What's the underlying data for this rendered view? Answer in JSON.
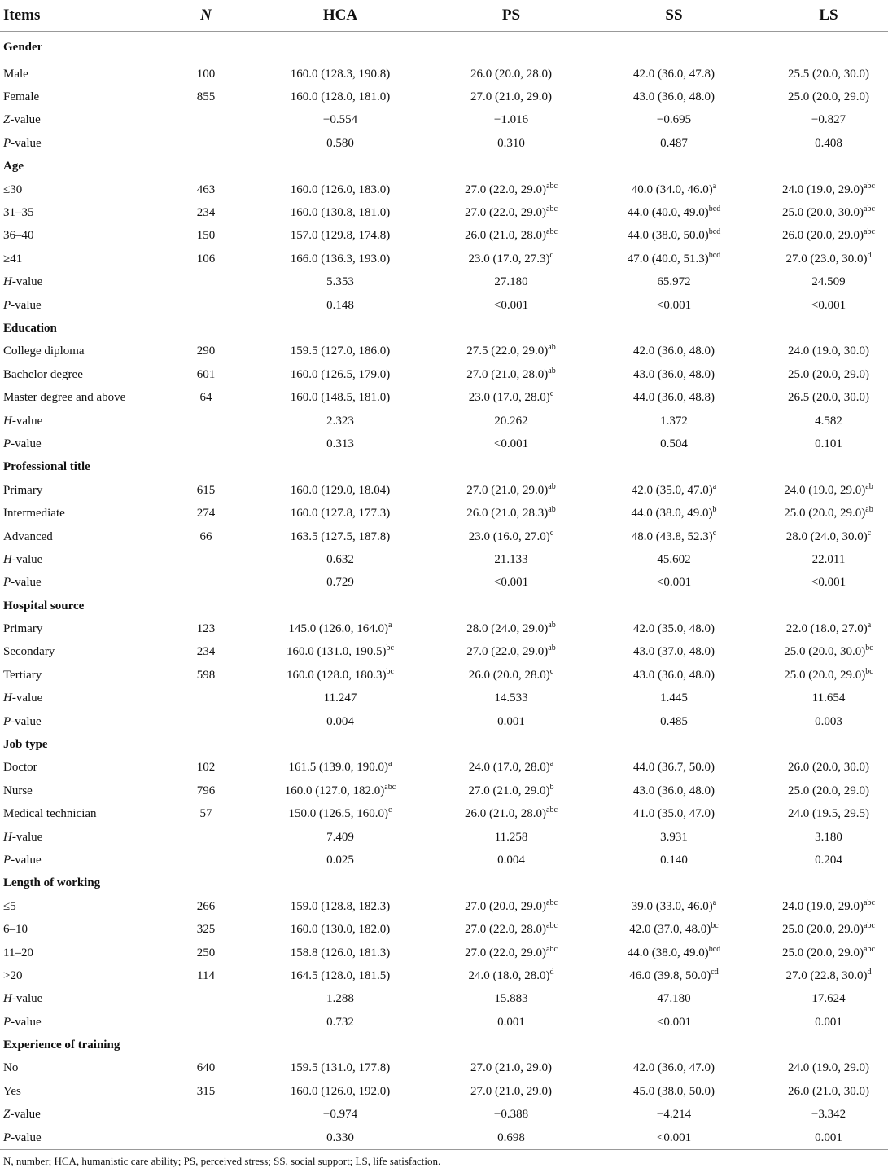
{
  "table": {
    "header": [
      "Items",
      "N",
      "HCA",
      "PS",
      "SS",
      "LS"
    ],
    "rows": [
      [
        "Gender"
      ],
      [
        "Male",
        "100",
        "160.0 (128.3, 190.8)",
        "26.0 (20.0, 28.0)",
        "42.0 (36.0, 47.8)",
        "25.5 (20.0, 30.0)"
      ],
      [
        "Female",
        "855",
        "160.0 (128.0, 181.0)",
        "27.0 (21.0, 29.0)",
        "43.0 (36.0, 48.0)",
        "25.0 (20.0, 29.0)"
      ],
      [
        "Z-value",
        null,
        "−0.554",
        "−1.016",
        "−0.695",
        "−0.827"
      ],
      [
        "P-value",
        null,
        "0.580",
        "0.310",
        "0.487",
        "0.408"
      ],
      [
        "Age"
      ],
      [
        "≤30",
        "463",
        "160.0 (126.0, 183.0)",
        {
          "text": "27.0 (22.0, 29.0)",
          "sup": "abc"
        },
        {
          "text": "40.0 (34.0, 46.0)",
          "sup": "a"
        },
        {
          "text": "24.0 (19.0, 29.0)",
          "sup": "abc"
        }
      ],
      [
        "31–35",
        "234",
        "160.0 (130.8, 181.0)",
        {
          "text": "27.0 (22.0, 29.0)",
          "sup": "abc"
        },
        {
          "text": "44.0 (40.0, 49.0)",
          "sup": "bcd"
        },
        {
          "text": "25.0 (20.0, 30.0)",
          "sup": "abc"
        }
      ],
      [
        "36–40",
        "150",
        "157.0 (129.8, 174.8)",
        {
          "text": "26.0 (21.0, 28.0)",
          "sup": "abc"
        },
        {
          "text": "44.0 (38.0, 50.0)",
          "sup": "bcd"
        },
        {
          "text": "26.0 (20.0, 29.0)",
          "sup": "abc"
        }
      ],
      [
        "≥41",
        "106",
        "166.0 (136.3, 193.0)",
        {
          "text": "23.0 (17.0, 27.3)",
          "sup": "d"
        },
        {
          "text": "47.0 (40.0, 51.3)",
          "sup": "bcd"
        },
        {
          "text": "27.0 (23.0, 30.0)",
          "sup": "d"
        }
      ],
      [
        "H-value",
        null,
        "5.353",
        "27.180",
        "65.972",
        "24.509"
      ],
      [
        "P-value",
        null,
        "0.148",
        "<0.001",
        "<0.001",
        "<0.001"
      ],
      [
        "Education"
      ],
      [
        "College diploma",
        "290",
        "159.5 (127.0, 186.0)",
        {
          "text": "27.5 (22.0, 29.0)",
          "sup": "ab"
        },
        "42.0 (36.0, 48.0)",
        "24.0 (19.0, 30.0)"
      ],
      [
        "Bachelor degree",
        "601",
        "160.0 (126.5, 179.0)",
        {
          "text": "27.0 (21.0, 28.0)",
          "sup": "ab"
        },
        "43.0 (36.0, 48.0)",
        "25.0 (20.0, 29.0)"
      ],
      [
        "Master degree and above",
        "64",
        "160.0 (148.5, 181.0)",
        {
          "text": "23.0 (17.0, 28.0)",
          "sup": "c"
        },
        "44.0 (36.0, 48.8)",
        "26.5 (20.0, 30.0)"
      ],
      [
        "H-value",
        null,
        "2.323",
        "20.262",
        "1.372",
        "4.582"
      ],
      [
        "P-value",
        null,
        "0.313",
        "<0.001",
        "0.504",
        "0.101"
      ],
      [
        "Professional title"
      ],
      [
        "Primary",
        "615",
        "160.0 (129.0, 18.04)",
        {
          "text": "27.0 (21.0, 29.0)",
          "sup": "ab"
        },
        {
          "text": "42.0 (35.0, 47.0)",
          "sup": "a"
        },
        {
          "text": "24.0 (19.0, 29.0)",
          "sup": "ab"
        }
      ],
      [
        "Intermediate",
        "274",
        "160.0 (127.8, 177.3)",
        {
          "text": "26.0 (21.0, 28.3)",
          "sup": "ab"
        },
        {
          "text": "44.0 (38.0, 49.0)",
          "sup": "b"
        },
        {
          "text": "25.0 (20.0, 29.0)",
          "sup": "ab"
        }
      ],
      [
        "Advanced",
        "66",
        "163.5 (127.5, 187.8)",
        {
          "text": "23.0 (16.0, 27.0)",
          "sup": "c"
        },
        {
          "text": "48.0 (43.8, 52.3)",
          "sup": "c"
        },
        {
          "text": "28.0 (24.0, 30.0)",
          "sup": "c"
        }
      ],
      [
        "H-value",
        null,
        "0.632",
        "21.133",
        "45.602",
        "22.011"
      ],
      [
        "P-value",
        null,
        "0.729",
        "<0.001",
        "<0.001",
        "<0.001"
      ],
      [
        "Hospital source"
      ],
      [
        "Primary",
        "123",
        {
          "text": "145.0 (126.0, 164.0)",
          "sup": "a"
        },
        {
          "text": "28.0 (24.0, 29.0)",
          "sup": "ab"
        },
        "42.0 (35.0, 48.0)",
        {
          "text": "22.0 (18.0, 27.0)",
          "sup": "a"
        }
      ],
      [
        "Secondary",
        "234",
        {
          "text": "160.0 (131.0, 190.5)",
          "sup": "bc"
        },
        {
          "text": "27.0 (22.0, 29.0)",
          "sup": "ab"
        },
        "43.0 (37.0, 48.0)",
        {
          "text": "25.0 (20.0, 30.0)",
          "sup": "bc"
        }
      ],
      [
        "Tertiary",
        "598",
        {
          "text": "160.0 (128.0, 180.3)",
          "sup": "bc"
        },
        {
          "text": "26.0 (20.0, 28.0)",
          "sup": "c"
        },
        "43.0 (36.0, 48.0)",
        {
          "text": "25.0 (20.0, 29.0)",
          "sup": "bc"
        }
      ],
      [
        "H-value",
        null,
        "11.247",
        "14.533",
        "1.445",
        "11.654"
      ],
      [
        "P-value",
        null,
        "0.004",
        "0.001",
        "0.485",
        "0.003"
      ],
      [
        "Job type"
      ],
      [
        "Doctor",
        "102",
        {
          "text": "161.5 (139.0, 190.0)",
          "sup": "a"
        },
        {
          "text": "24.0 (17.0, 28.0)",
          "sup": "a"
        },
        "44.0 (36.7, 50.0)",
        "26.0 (20.0, 30.0)"
      ],
      [
        "Nurse",
        "796",
        {
          "text": "160.0 (127.0, 182.0)",
          "sup": "abc"
        },
        {
          "text": "27.0 (21.0, 29.0)",
          "sup": "b"
        },
        "43.0 (36.0, 48.0)",
        "25.0 (20.0, 29.0)"
      ],
      [
        "Medical technician",
        "57",
        {
          "text": "150.0 (126.5, 160.0)",
          "sup": "c"
        },
        {
          "text": "26.0 (21.0, 28.0)",
          "sup": "abc"
        },
        "41.0 (35.0, 47.0)",
        "24.0 (19.5, 29.5)"
      ],
      [
        "H-value",
        null,
        "7.409",
        "11.258",
        "3.931",
        "3.180"
      ],
      [
        "P-value",
        null,
        "0.025",
        "0.004",
        "0.140",
        "0.204"
      ],
      [
        "Length of working"
      ],
      [
        "≤5",
        "266",
        "159.0 (128.8, 182.3)",
        {
          "text": "27.0 (20.0, 29.0)",
          "sup": "abc"
        },
        {
          "text": "39.0 (33.0, 46.0)",
          "sup": "a"
        },
        {
          "text": "24.0 (19.0, 29.0)",
          "sup": "abc"
        }
      ],
      [
        "6–10",
        "325",
        "160.0 (130.0, 182.0)",
        {
          "text": "27.0 (22.0, 28.0)",
          "sup": "abc"
        },
        {
          "text": "42.0 (37.0, 48.0)",
          "sup": "bc"
        },
        {
          "text": "25.0 (20.0, 29.0)",
          "sup": "abc"
        }
      ],
      [
        "11–20",
        "250",
        "158.8 (126.0, 181.3)",
        {
          "text": "27.0 (22.0, 29.0)",
          "sup": "abc"
        },
        {
          "text": "44.0 (38.0, 49.0)",
          "sup": "bcd"
        },
        {
          "text": "25.0 (20.0, 29.0)",
          "sup": "abc"
        }
      ],
      [
        ">20",
        "114",
        "164.5 (128.0, 181.5)",
        {
          "text": "24.0 (18.0, 28.0)",
          "sup": "d"
        },
        {
          "text": "46.0 (39.8, 50.0)",
          "sup": "cd"
        },
        {
          "text": "27.0 (22.8, 30.0)",
          "sup": "d"
        }
      ],
      [
        "H-value",
        null,
        "1.288",
        "15.883",
        "47.180",
        "17.624"
      ],
      [
        "P-value",
        null,
        "0.732",
        "0.001",
        "<0.001",
        "0.001"
      ],
      [
        "Experience of training"
      ],
      [
        "No",
        "640",
        "159.5 (131.0, 177.8)",
        "27.0 (21.0, 29.0)",
        "42.0 (36.0, 47.0)",
        "24.0 (19.0, 29.0)"
      ],
      [
        "Yes",
        "315",
        "160.0 (126.0, 192.0)",
        "27.0 (21.0, 29.0)",
        "45.0 (38.0, 50.0)",
        "26.0 (21.0, 30.0)"
      ],
      [
        "Z-value",
        null,
        "−0.974",
        "−0.388",
        "−4.214",
        "−3.342"
      ],
      [
        "P-value",
        null,
        "0.330",
        "0.698",
        "<0.001",
        "0.001"
      ]
    ],
    "footnote": "N, number; HCA, humanistic care ability; PS, perceived stress; SS, social support; LS, life satisfaction."
  }
}
